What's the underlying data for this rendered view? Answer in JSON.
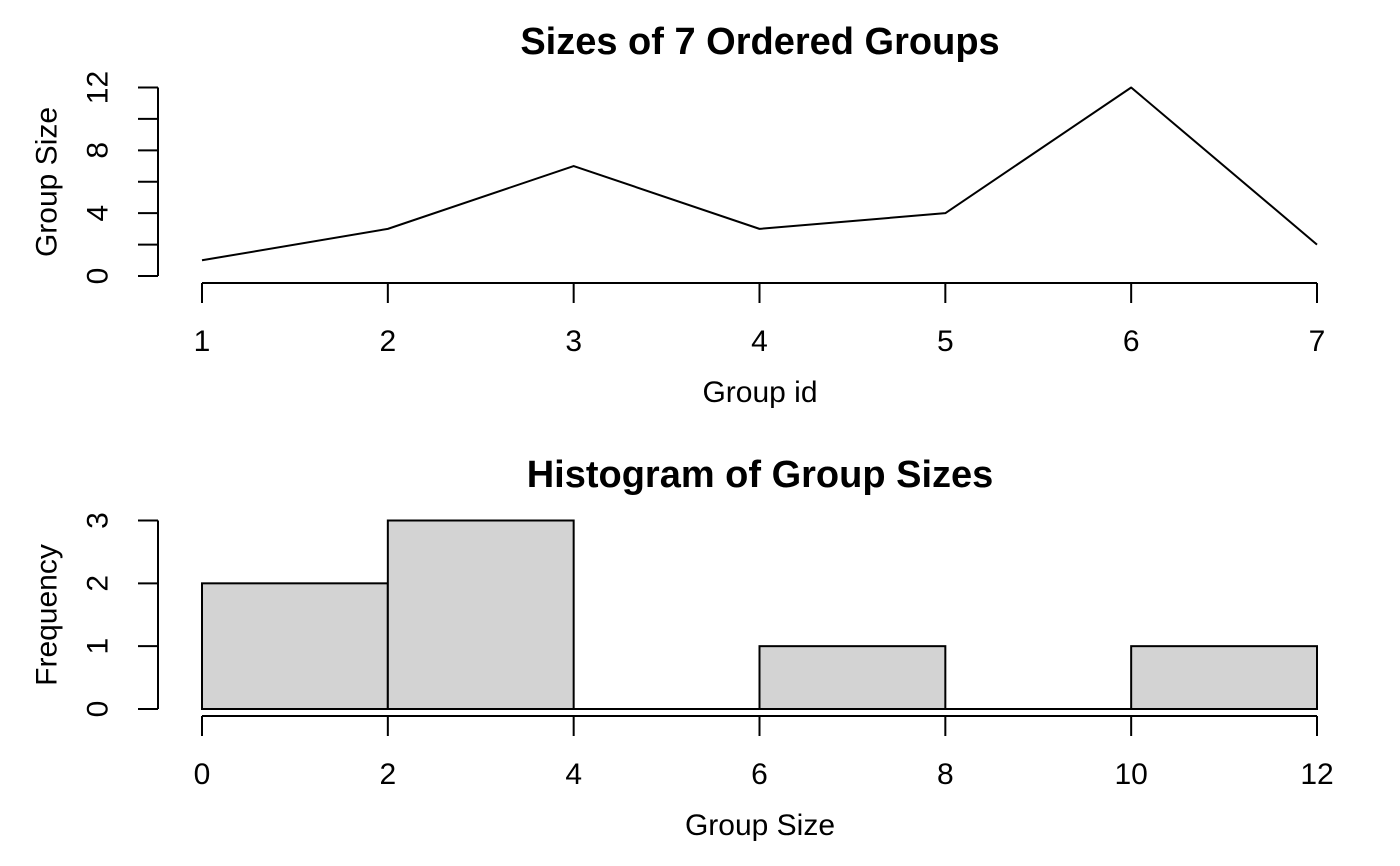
{
  "page": {
    "background_color": "#FFFFFF",
    "foreground_color": "#000000"
  },
  "chart_data": [
    {
      "type": "line",
      "title": "Sizes of 7 Ordered Groups",
      "xlabel": "Group id",
      "ylabel": "Group Size",
      "x": [
        1,
        2,
        3,
        4,
        5,
        6,
        7
      ],
      "y": [
        1,
        3,
        7,
        3,
        4,
        12,
        2
      ],
      "xlim": [
        1,
        7
      ],
      "ylim": [
        0,
        12
      ],
      "x_ticks": [
        1,
        2,
        3,
        4,
        5,
        6,
        7
      ],
      "y_ticks": [
        0,
        2,
        4,
        6,
        8,
        10,
        12
      ],
      "y_tick_labels": [
        0,
        4,
        8,
        12
      ],
      "line_color": "#000000",
      "grid": false,
      "legend": false
    },
    {
      "type": "bar",
      "subtype": "histogram",
      "title": "Histogram of Group Sizes",
      "xlabel": "Group Size",
      "ylabel": "Frequency",
      "bins": [
        [
          0,
          2
        ],
        [
          2,
          4
        ],
        [
          4,
          6
        ],
        [
          6,
          8
        ],
        [
          8,
          10
        ],
        [
          10,
          12
        ]
      ],
      "frequencies": [
        2,
        3,
        0,
        1,
        0,
        1
      ],
      "xlim": [
        0,
        12
      ],
      "ylim": [
        0,
        3
      ],
      "x_ticks": [
        0,
        2,
        4,
        6,
        8,
        10,
        12
      ],
      "y_ticks": [
        0,
        1,
        2,
        3
      ],
      "y_tick_labels": [
        0,
        1,
        2,
        3
      ],
      "bar_fill": "#D3D3D3",
      "bar_stroke": "#000000",
      "grid": false,
      "legend": false
    }
  ]
}
